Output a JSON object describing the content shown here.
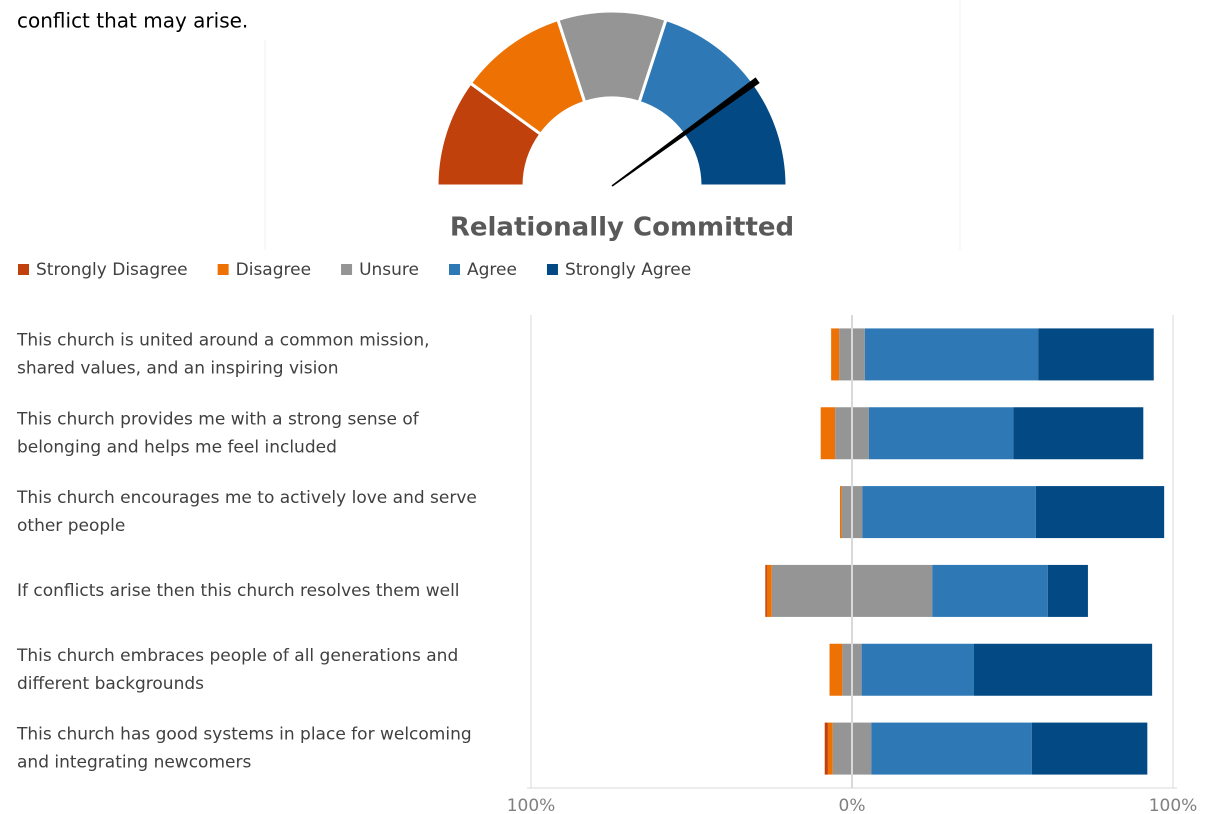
{
  "document": {
    "text": "conflict that may arise."
  },
  "chart_data": [
    {
      "type": "gauge",
      "title": "Relationally Committed",
      "colors": [
        "#c0410c",
        "#ee7203",
        "#959595",
        "#2e79b5",
        "#034a85"
      ],
      "range": [
        1,
        5
      ],
      "value": 4.2
    },
    {
      "type": "diverging_bar",
      "categories": [
        [
          "This church is united around a common mission,",
          "shared values, and an inspiring vision"
        ],
        [
          "This church provides me with a strong sense of",
          "belonging and helps me feel included"
        ],
        [
          "This church encourages me to actively love and serve",
          "other people"
        ],
        [
          "If conflicts arise then this church resolves them well"
        ],
        [
          "This church embraces people of all generations and",
          "different backgrounds"
        ],
        [
          "This church has good systems in place for welcoming",
          "and integrating newcomers"
        ]
      ],
      "series": [
        {
          "name": "Strongly Disagree",
          "color": "#c0410c",
          "values": [
            0,
            0,
            0,
            0.5,
            0,
            1
          ]
        },
        {
          "name": "Disagree",
          "color": "#ee7203",
          "values": [
            2.5,
            4.5,
            0.5,
            1.5,
            4,
            1.5
          ]
        },
        {
          "name": "Unsure",
          "color": "#959595",
          "values": [
            8,
            10.5,
            6.5,
            50,
            6,
            12
          ]
        },
        {
          "name": "Agree",
          "color": "#2e79b5",
          "values": [
            54,
            45,
            54,
            36,
            35,
            50
          ]
        },
        {
          "name": "Strongly Agree",
          "color": "#034a85",
          "values": [
            36,
            40.5,
            40,
            12.5,
            55.5,
            36
          ]
        }
      ],
      "xlim": [
        -100,
        100
      ],
      "xticks": [
        {
          "value": -100,
          "label": "100%"
        },
        {
          "value": 0,
          "label": "0%"
        },
        {
          "value": 100,
          "label": "100%"
        }
      ],
      "grid": true
    }
  ]
}
